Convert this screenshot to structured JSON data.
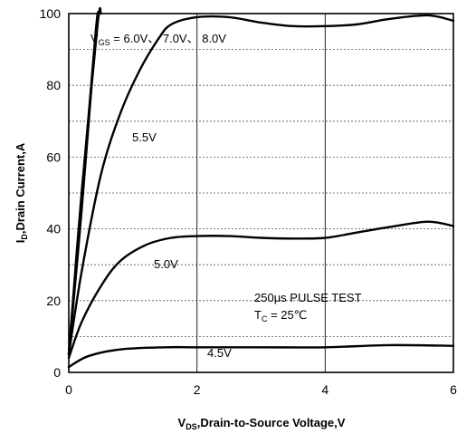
{
  "chart_data": {
    "type": "line",
    "title": "",
    "xlabel": "V₄ₛ,Drain-to-Source Voltage,V",
    "xlabel_parts": {
      "main": "V",
      "sub": "DS",
      "rest": ",Drain-to-Source Voltage,V"
    },
    "ylabel_parts": {
      "main": "I",
      "sub": "D",
      "rest": ",Drain Current,A"
    },
    "xlim": [
      0,
      6
    ],
    "ylim": [
      0,
      100
    ],
    "xticks": [
      0,
      2,
      4,
      6
    ],
    "yticks": [
      0,
      20,
      40,
      60,
      80,
      100
    ],
    "grid": {
      "horizontal_step": 10,
      "vertical": [
        2,
        4
      ]
    },
    "series": [
      {
        "name": "4.5V",
        "points": [
          [
            0,
            1.5
          ],
          [
            0.3,
            4.5
          ],
          [
            0.8,
            6.4
          ],
          [
            1.5,
            7.0
          ],
          [
            2.0,
            7.0
          ],
          [
            3.0,
            7.0
          ],
          [
            4.0,
            7.0
          ],
          [
            5.0,
            7.6
          ],
          [
            6.0,
            7.4
          ]
        ]
      },
      {
        "name": "5.0V",
        "points": [
          [
            0,
            4
          ],
          [
            0.2,
            14
          ],
          [
            0.5,
            24
          ],
          [
            0.8,
            31
          ],
          [
            1.2,
            35.5
          ],
          [
            1.6,
            37.5
          ],
          [
            2.0,
            38
          ],
          [
            2.5,
            38
          ],
          [
            3.0,
            37.5
          ],
          [
            3.5,
            37.3
          ],
          [
            4.0,
            37.5
          ],
          [
            4.5,
            39
          ],
          [
            5.0,
            40.5
          ],
          [
            5.6,
            42
          ],
          [
            6.0,
            40.8
          ]
        ]
      },
      {
        "name": "5.5V",
        "points": [
          [
            0,
            5
          ],
          [
            0.2,
            28
          ],
          [
            0.5,
            55
          ],
          [
            0.8,
            72
          ],
          [
            1.1,
            84
          ],
          [
            1.4,
            93
          ],
          [
            1.6,
            97
          ],
          [
            2.0,
            99
          ],
          [
            2.5,
            99
          ],
          [
            3.0,
            97.5
          ],
          [
            3.5,
            96.5
          ],
          [
            4.0,
            96.5
          ],
          [
            4.5,
            97
          ],
          [
            5.0,
            98.5
          ],
          [
            5.6,
            99.5
          ],
          [
            6.0,
            98
          ]
        ]
      },
      {
        "name": "6.0V",
        "points": [
          [
            0,
            5
          ],
          [
            0.2,
            45
          ],
          [
            0.4,
            90
          ],
          [
            0.45,
            100
          ]
        ]
      },
      {
        "name": "7.0V",
        "points": [
          [
            0,
            5
          ],
          [
            0.2,
            48
          ],
          [
            0.42,
            95
          ],
          [
            0.47,
            100
          ]
        ]
      },
      {
        "name": "8.0V",
        "points": [
          [
            0,
            5
          ],
          [
            0.2,
            50
          ],
          [
            0.45,
            97
          ],
          [
            0.5,
            100
          ]
        ]
      }
    ],
    "annotations": {
      "vds_label": {
        "main": "V",
        "sub": "GS",
        "rest": " = 6.0V、 7.0V、 8.0V"
      },
      "label_55": "5.5V",
      "label_50": "5.0V",
      "label_45": "4.5V",
      "pulse": "250μs PULSE TEST",
      "tc": {
        "main": "T",
        "sub": "C",
        "rest": " = 25℃"
      }
    }
  }
}
